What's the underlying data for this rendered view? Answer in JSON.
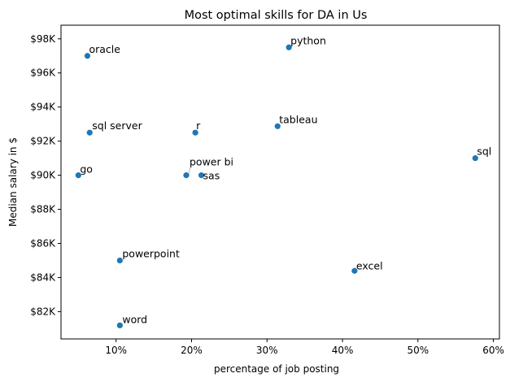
{
  "chart_data": {
    "type": "scatter",
    "title": "Most optimal skills for DA in Us",
    "xlabel": "percentage of job posting",
    "ylabel": "Median salary in $",
    "xlim": [
      2.7,
      60.8
    ],
    "ylim": [
      80400,
      98800
    ],
    "x_ticks": [
      10,
      20,
      30,
      40,
      50,
      60
    ],
    "x_tick_labels": [
      "10%",
      "20%",
      "30%",
      "40%",
      "50%",
      "60%"
    ],
    "y_ticks": [
      82000,
      84000,
      86000,
      88000,
      90000,
      92000,
      94000,
      96000,
      98000
    ],
    "y_tick_labels": [
      "$82K",
      "$84K",
      "$86K",
      "$88K",
      "$90K",
      "$92K",
      "$94K",
      "$96K",
      "$98K"
    ],
    "grid": false,
    "marker_color": "#1f77b4",
    "points": [
      {
        "label": "oracle",
        "x": 6.2,
        "y": 97000
      },
      {
        "label": "python",
        "x": 32.9,
        "y": 97500
      },
      {
        "label": "sql server",
        "x": 6.5,
        "y": 92500
      },
      {
        "label": "r",
        "x": 20.5,
        "y": 92500
      },
      {
        "label": "tableau",
        "x": 31.4,
        "y": 92875
      },
      {
        "label": "sql",
        "x": 57.6,
        "y": 91000
      },
      {
        "label": "go",
        "x": 5.0,
        "y": 90000
      },
      {
        "label": "power bi",
        "x": 19.3,
        "y": 90000
      },
      {
        "label": "sas",
        "x": 21.3,
        "y": 90000
      },
      {
        "label": "powerpoint",
        "x": 10.5,
        "y": 85000
      },
      {
        "label": "excel",
        "x": 41.6,
        "y": 84392
      },
      {
        "label": "word",
        "x": 10.5,
        "y": 81194
      }
    ]
  }
}
